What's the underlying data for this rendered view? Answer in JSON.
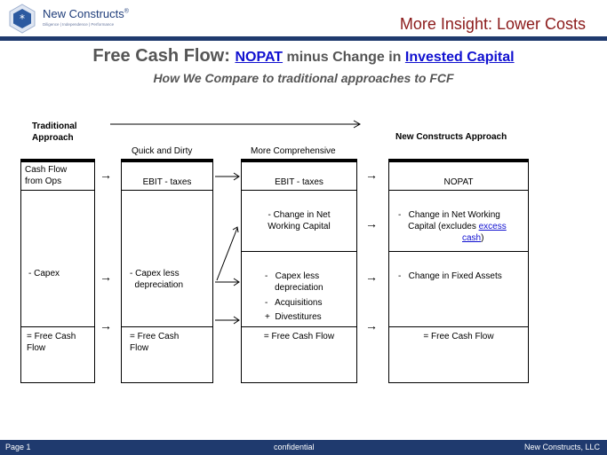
{
  "header": {
    "logo_name": "New Constructs",
    "logo_reg": "®",
    "logo_tagline": "Diligence | Independence | Performance",
    "title": "More Insight: Lower Costs"
  },
  "slide": {
    "title_lead": "Free Cash Flow: ",
    "title_link1": "NOPAT",
    "title_mid": " minus Change in ",
    "title_link2": "Invested Capital",
    "subtitle": "How We Compare to traditional approaches to FCF"
  },
  "columns": {
    "traditional_header": "Traditional\nApproach",
    "quick_header": "Quick and Dirty",
    "comprehensive_header": "More Comprehensive",
    "nc_header": "New Constructs Approach"
  },
  "table": {
    "traditional": {
      "row1": "Cash Flow\nfrom Ops",
      "row2": "- Capex",
      "row3": "= Free Cash\nFlow"
    },
    "quick": {
      "row1": "EBIT - taxes",
      "row2": "- Capex less\n  depreciation",
      "row3": "= Free Cash\nFlow"
    },
    "comprehensive": {
      "row1": "EBIT - taxes",
      "row2a": "- Change in Net\nWorking Capital",
      "row2b_1": "-   Capex less\n    depreciation",
      "row2b_2": "-   Acquisitions",
      "row2b_3": "+  Divestitures",
      "row3": "= Free Cash Flow"
    },
    "nc": {
      "row1": "NOPAT",
      "row2a_text": "-   Change in Net Working\n    Capital (excludes ",
      "row2a_link1": "excess",
      "row2a_link2": "cash",
      "row2a_end": ")",
      "row2b": "-   Change in Fixed Assets",
      "row3": "=  Free Cash Flow"
    },
    "arrow_glyph": "→"
  },
  "footer": {
    "page": "Page 1",
    "center": "confidential",
    "right": "New Constructs, LLC"
  },
  "colors": {
    "brand_navy": "#1f3a6e",
    "header_title": "#8b1a1a",
    "link_blue": "#1010d0",
    "title_gray": "#555555"
  }
}
